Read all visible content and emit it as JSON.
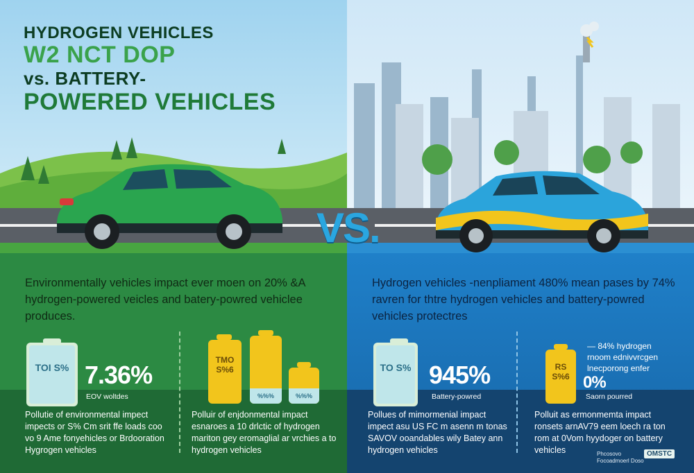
{
  "left": {
    "title_line1": "HYDROGEN VEHICLES",
    "title_line2": "W2 NCT DOP",
    "title_line3": "vs. BATTERY-",
    "title_line4": "POWERED VEHICLES",
    "paragraph": "Environmentally vehicles impact ever moen on 20% &A hydrogen-powered veicles and batery-powred vehiclee produces.",
    "battery1_text": "TOI S%",
    "stat_value": "7.36%",
    "stat_label": "EOV woltdes",
    "battery2_text": "TMO S%6",
    "battery3_text": "%%%",
    "battery4_text": "%%%",
    "footer_left": "Pollutie of environmental impect impects or S% Cm srit ffe loads coo vo 9 Ame fonyehicles or Brdooration Hygrogen vehicles",
    "footer_right": "Polluir of enjdonmental impact esnaroes a 10 drlctic of hydrogen mariton gey eromaglial ar vrchies a to hydrogen vehicles",
    "colors": {
      "green": "#2e8f47",
      "yellow": "#f2c51c",
      "light_battery": "#bfe6ea"
    }
  },
  "right": {
    "paragraph": "Hydrogen vehicles -nenpliament 480% mean pases by 74% ravren for thtre hydrogen vehicles and battery-powred vehicles protectres",
    "battery1_text": "TO S%",
    "stat_value": "945%",
    "stat_label": "Battery-powred",
    "battery2_text": "RS S%6",
    "stat2_line1": "— 84% hydrogen",
    "stat2_line2": "rnoom ednivvrcgen",
    "stat2_line3": "lnecporong enfer",
    "stat2_value": "0%",
    "stat2_label": "Saorn pourred",
    "footer_left": "Pollues of mimormenial impact impect asu US FC m asenn m tonas SAVOV ooandables wily Batey ann hydrogen vehicles",
    "footer_right": "Polluit as ermonmemta impact ronsets arnAV79 eem loech ra ton rom at 0Vom hyydoger on battery vehicles",
    "logo": "OMSTC",
    "credit": "Phcosovo Focoadmoerl Doso"
  },
  "vs_label": "VS.",
  "icons": [
    "hydrogen-car-icon",
    "battery-car-icon",
    "factory-icon",
    "tree-icon",
    "battery-icon"
  ]
}
